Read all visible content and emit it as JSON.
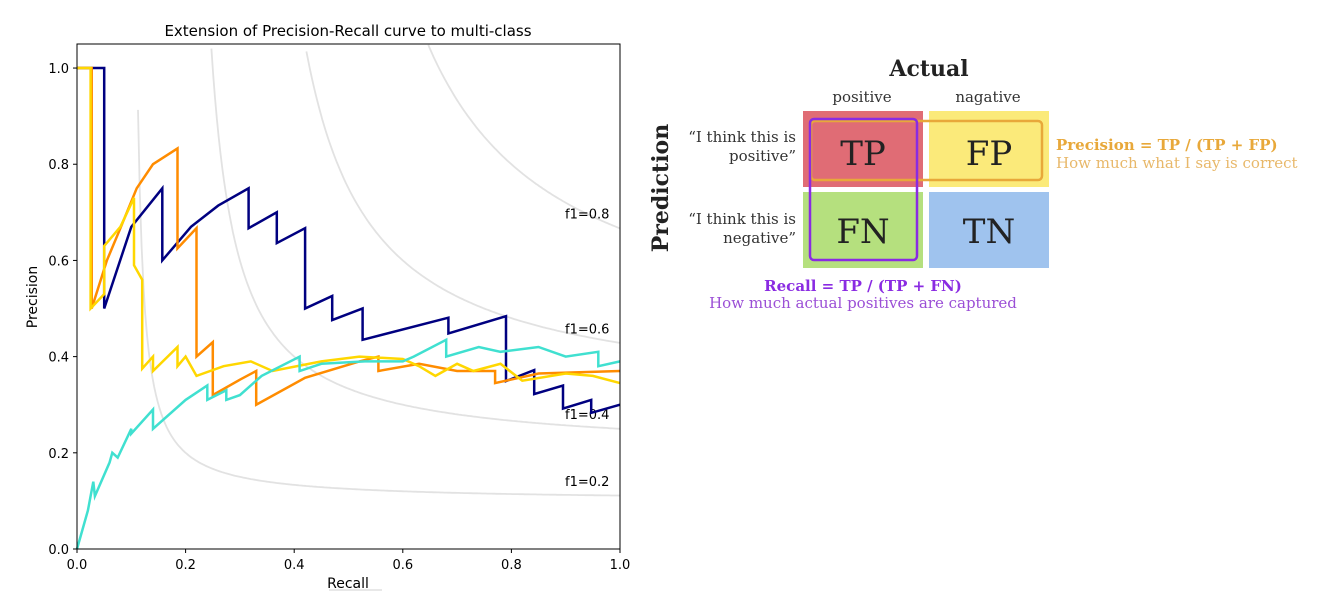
{
  "chart_data": {
    "type": "line",
    "title": "Extension of Precision-Recall curve to multi-class",
    "xlabel": "Recall",
    "ylabel": "Precision",
    "xlim": [
      0.0,
      1.0
    ],
    "ylim": [
      0.0,
      1.05
    ],
    "grid": false,
    "x_ticks": [
      "0.0",
      "0.2",
      "0.4",
      "0.6",
      "0.8",
      "1.0"
    ],
    "y_ticks": [
      "0.0",
      "0.2",
      "0.4",
      "0.6",
      "0.8",
      "1.0"
    ],
    "iso_f1": [
      {
        "f1": 0.2,
        "label": "f1=0.2"
      },
      {
        "f1": 0.4,
        "label": "f1=0.4"
      },
      {
        "f1": 0.6,
        "label": "f1=0.6"
      },
      {
        "f1": 0.8,
        "label": "f1=0.8"
      }
    ],
    "iso_f1_color": "#e2e2e2",
    "series": [
      {
        "color": "#000080",
        "points": [
          [
            0.0,
            1.0
          ],
          [
            0.05,
            1.0
          ],
          [
            0.05,
            0.5
          ],
          [
            0.1,
            0.67
          ],
          [
            0.157,
            0.75
          ],
          [
            0.157,
            0.6
          ],
          [
            0.21,
            0.67
          ],
          [
            0.26,
            0.714
          ],
          [
            0.316,
            0.75
          ],
          [
            0.316,
            0.667
          ],
          [
            0.368,
            0.7
          ],
          [
            0.368,
            0.636
          ],
          [
            0.42,
            0.667
          ],
          [
            0.42,
            0.5
          ],
          [
            0.47,
            0.526
          ],
          [
            0.47,
            0.476
          ],
          [
            0.526,
            0.5
          ],
          [
            0.526,
            0.435
          ],
          [
            0.684,
            0.481
          ],
          [
            0.684,
            0.448
          ],
          [
            0.79,
            0.484
          ],
          [
            0.79,
            0.349
          ],
          [
            0.842,
            0.372
          ],
          [
            0.842,
            0.322
          ],
          [
            0.895,
            0.34
          ],
          [
            0.895,
            0.292
          ],
          [
            0.947,
            0.31
          ],
          [
            0.947,
            0.283
          ],
          [
            1.0,
            0.3
          ]
        ]
      },
      {
        "color": "#ff8c00",
        "points": [
          [
            0.0,
            1.0
          ],
          [
            0.027,
            1.0
          ],
          [
            0.027,
            0.5
          ],
          [
            0.055,
            0.6
          ],
          [
            0.08,
            0.667
          ],
          [
            0.11,
            0.75
          ],
          [
            0.14,
            0.8
          ],
          [
            0.185,
            0.833
          ],
          [
            0.185,
            0.625
          ],
          [
            0.22,
            0.667
          ],
          [
            0.22,
            0.4
          ],
          [
            0.25,
            0.43
          ],
          [
            0.25,
            0.32
          ],
          [
            0.3,
            0.352
          ],
          [
            0.33,
            0.37
          ],
          [
            0.33,
            0.3
          ],
          [
            0.42,
            0.356
          ],
          [
            0.52,
            0.39
          ],
          [
            0.555,
            0.4
          ],
          [
            0.555,
            0.37
          ],
          [
            0.63,
            0.385
          ],
          [
            0.7,
            0.37
          ],
          [
            0.77,
            0.37
          ],
          [
            0.77,
            0.345
          ],
          [
            0.85,
            0.365
          ],
          [
            1.0,
            0.37
          ]
        ]
      },
      {
        "color": "#ffd700",
        "points": [
          [
            0.0,
            1.0
          ],
          [
            0.025,
            1.0
          ],
          [
            0.025,
            0.5
          ],
          [
            0.05,
            0.53
          ],
          [
            0.05,
            0.63
          ],
          [
            0.08,
            0.67
          ],
          [
            0.105,
            0.73
          ],
          [
            0.105,
            0.59
          ],
          [
            0.12,
            0.56
          ],
          [
            0.12,
            0.375
          ],
          [
            0.14,
            0.4
          ],
          [
            0.14,
            0.37
          ],
          [
            0.185,
            0.42
          ],
          [
            0.185,
            0.38
          ],
          [
            0.2,
            0.4
          ],
          [
            0.22,
            0.36
          ],
          [
            0.27,
            0.38
          ],
          [
            0.32,
            0.39
          ],
          [
            0.36,
            0.37
          ],
          [
            0.45,
            0.39
          ],
          [
            0.52,
            0.4
          ],
          [
            0.6,
            0.395
          ],
          [
            0.63,
            0.38
          ],
          [
            0.66,
            0.36
          ],
          [
            0.7,
            0.385
          ],
          [
            0.73,
            0.37
          ],
          [
            0.78,
            0.385
          ],
          [
            0.82,
            0.35
          ],
          [
            0.9,
            0.365
          ],
          [
            0.95,
            0.36
          ],
          [
            1.0,
            0.345
          ]
        ]
      },
      {
        "color": "#40e0d0",
        "points": [
          [
            0.0,
            0.0
          ],
          [
            0.02,
            0.08
          ],
          [
            0.03,
            0.14
          ],
          [
            0.033,
            0.11
          ],
          [
            0.06,
            0.18
          ],
          [
            0.065,
            0.2
          ],
          [
            0.075,
            0.19
          ],
          [
            0.1,
            0.25
          ],
          [
            0.1,
            0.24
          ],
          [
            0.14,
            0.29
          ],
          [
            0.14,
            0.25
          ],
          [
            0.2,
            0.31
          ],
          [
            0.24,
            0.34
          ],
          [
            0.24,
            0.31
          ],
          [
            0.275,
            0.33
          ],
          [
            0.275,
            0.31
          ],
          [
            0.3,
            0.32
          ],
          [
            0.34,
            0.36
          ],
          [
            0.41,
            0.4
          ],
          [
            0.41,
            0.37
          ],
          [
            0.45,
            0.385
          ],
          [
            0.53,
            0.39
          ],
          [
            0.6,
            0.39
          ],
          [
            0.62,
            0.4
          ],
          [
            0.68,
            0.435
          ],
          [
            0.68,
            0.4
          ],
          [
            0.74,
            0.42
          ],
          [
            0.78,
            0.41
          ],
          [
            0.85,
            0.42
          ],
          [
            0.9,
            0.4
          ],
          [
            0.96,
            0.41
          ],
          [
            0.96,
            0.38
          ],
          [
            1.0,
            0.39
          ]
        ]
      }
    ]
  },
  "diagram": {
    "header_actual": "Actual",
    "col_positive": "positive",
    "col_negative": "nagative",
    "row_title": "Prediction",
    "row1_line1": "“I think this is",
    "row1_line2": "positive”",
    "row2_line1": "“I think this is",
    "row2_line2": "negative”",
    "tp": "TP",
    "fp": "FP",
    "fn": "FN",
    "tn": "TN",
    "precision_formula": "Precision = TP / (TP + FP)",
    "precision_desc": "How much what I say is correct",
    "recall_formula": "Recall = TP / (TP + FN)",
    "recall_desc": "How much actual positives are captured",
    "colors": {
      "tp": "#e06c75",
      "fp": "#fbea7a",
      "fn": "#b5e07e",
      "tn": "#9fc3ee",
      "precision": "#e8a83a",
      "recall": "#8a2be2"
    }
  }
}
